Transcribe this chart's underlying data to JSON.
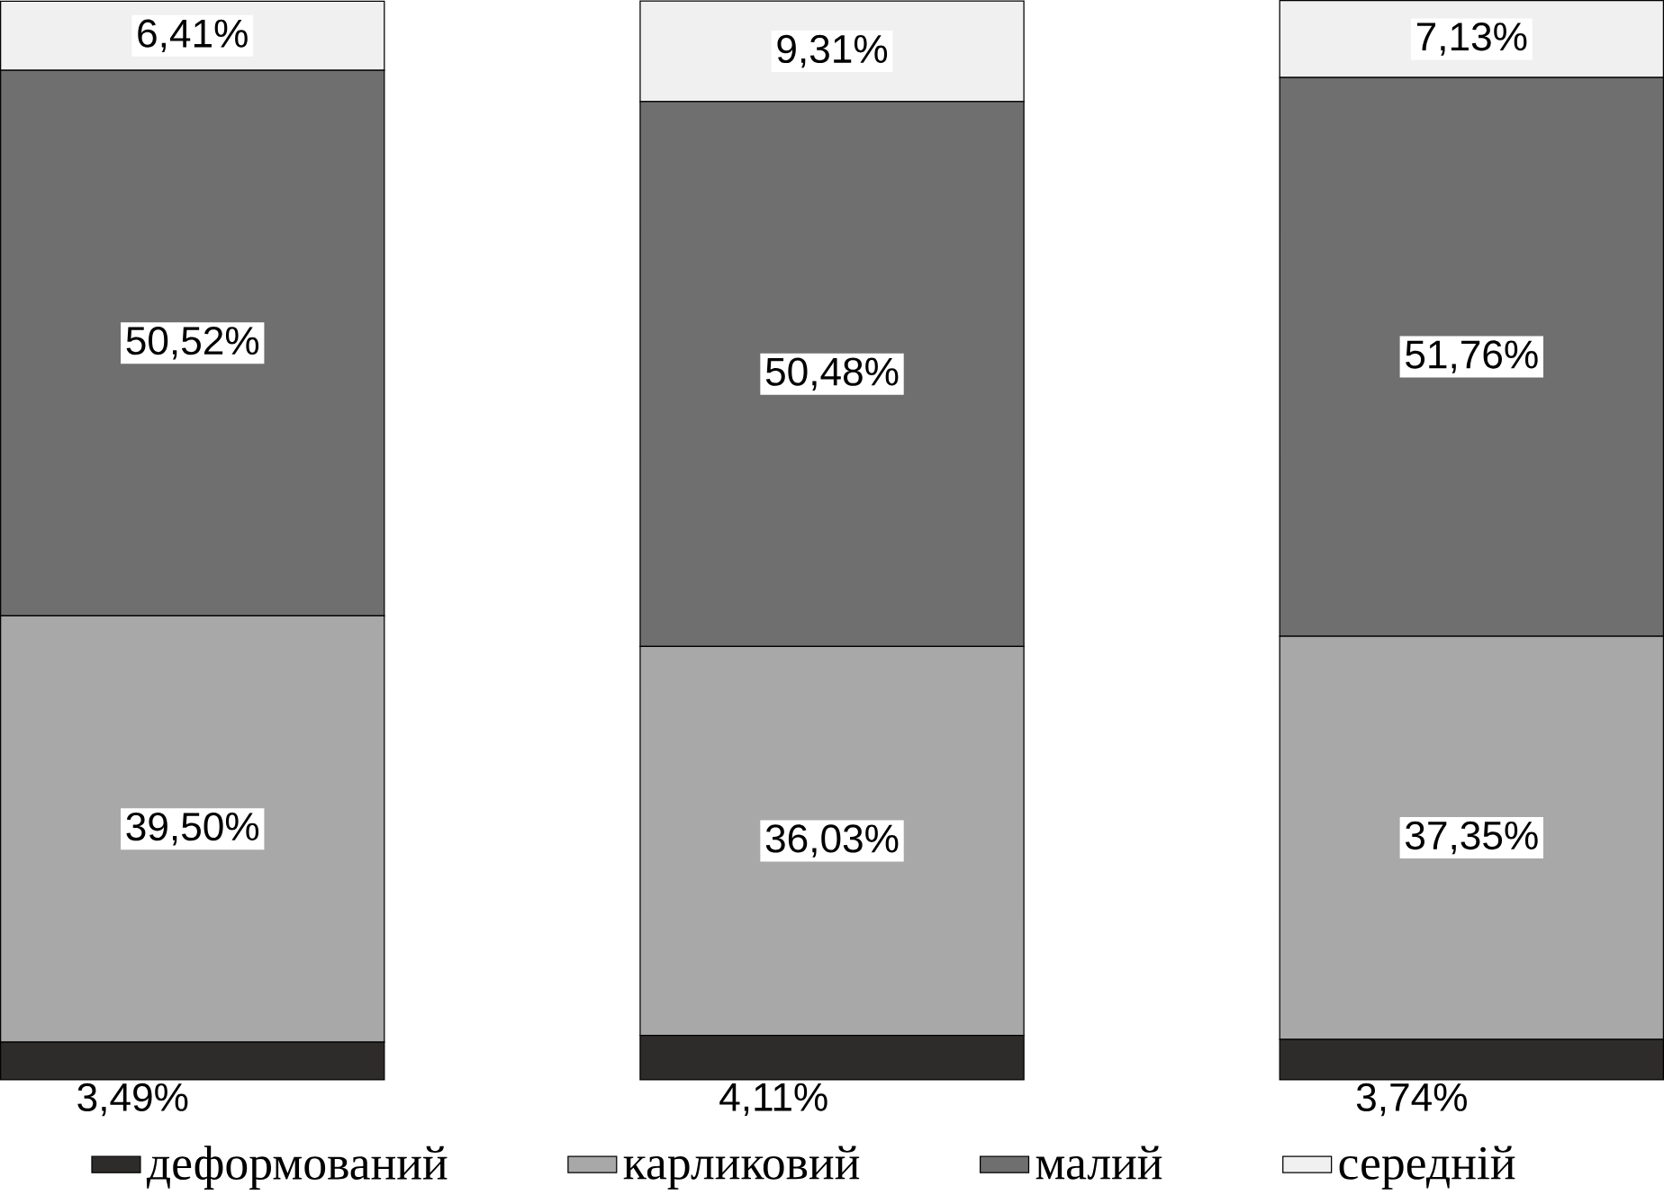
{
  "chart_data": {
    "type": "bar",
    "stacked": true,
    "categories": [
      null,
      null,
      null
    ],
    "ylim": [
      0,
      100
    ],
    "legend": "bottom",
    "series": [
      {
        "name": "деформований",
        "color": "#2e2b2b",
        "values": [
          3.49,
          4.11,
          3.74
        ],
        "value_labels": [
          "3,49%",
          "4,11%",
          "3,74%"
        ]
      },
      {
        "name": "карликовий",
        "color": "#a8a8a8",
        "values": [
          39.5,
          36.03,
          37.35
        ],
        "value_labels": [
          "39,50%",
          "36,03%",
          "37,35%"
        ]
      },
      {
        "name": "малий",
        "color": "#6f6f6f",
        "values": [
          50.52,
          50.48,
          51.76
        ],
        "value_labels": [
          "50,52%",
          "50,48%",
          "51,76%"
        ]
      },
      {
        "name": "середній",
        "color": "#f0f0f0",
        "values": [
          6.41,
          9.31,
          7.13
        ],
        "value_labels": [
          "6,41%",
          "9,31%",
          "7,13%"
        ]
      }
    ]
  }
}
